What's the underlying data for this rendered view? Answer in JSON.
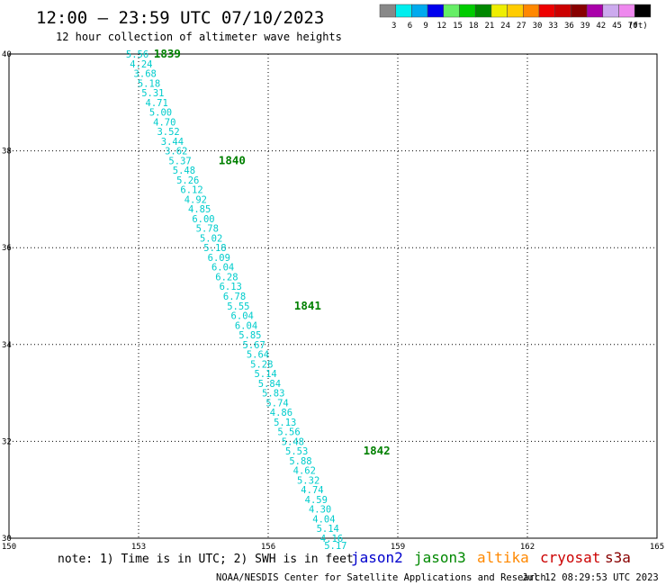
{
  "title": "12:00 – 23:59 UTC 07/10/2023",
  "subtitle": "12 hour collection of altimeter wave heights",
  "legend": {
    "unit": "(ft)",
    "bins": [
      {
        "label": "3",
        "color": "#888888"
      },
      {
        "label": "6",
        "color": "#00eeee"
      },
      {
        "label": "9",
        "color": "#00aaee"
      },
      {
        "label": "12",
        "color": "#0000ee"
      },
      {
        "label": "15",
        "color": "#66ee66"
      },
      {
        "label": "18",
        "color": "#00cc00"
      },
      {
        "label": "21",
        "color": "#008800"
      },
      {
        "label": "24",
        "color": "#eeee00"
      },
      {
        "label": "27",
        "color": "#ffcc00"
      },
      {
        "label": "30",
        "color": "#ff8800"
      },
      {
        "label": "33",
        "color": "#ee0000"
      },
      {
        "label": "36",
        "color": "#cc0000"
      },
      {
        "label": "39",
        "color": "#880000"
      },
      {
        "label": "42",
        "color": "#aa00aa"
      },
      {
        "label": "45",
        "color": "#ccaaee"
      },
      {
        "label": "70",
        "color": "#ee88ee"
      },
      {
        "label": "",
        "color": "#000000"
      }
    ]
  },
  "chart_data": {
    "type": "scatter",
    "xlim": [
      150,
      165
    ],
    "ylim": [
      30,
      40
    ],
    "xticks": [
      "150",
      "153",
      "156",
      "159",
      "162",
      "165"
    ],
    "yticks": [
      "30",
      "32",
      "34",
      "36",
      "38",
      "40"
    ],
    "grid": true,
    "point_color": "#00cccc",
    "label_color": "#008000",
    "points": [
      {
        "x": 152.97,
        "y": 40.0,
        "label": "5.56"
      },
      {
        "x": 153.06,
        "y": 39.8,
        "label": "4.24"
      },
      {
        "x": 153.15,
        "y": 39.6,
        "label": "3.68"
      },
      {
        "x": 153.24,
        "y": 39.4,
        "label": "5.18"
      },
      {
        "x": 153.33,
        "y": 39.2,
        "label": "5.31"
      },
      {
        "x": 153.42,
        "y": 39.0,
        "label": "4.71"
      },
      {
        "x": 153.51,
        "y": 38.8,
        "label": "5.00"
      },
      {
        "x": 153.6,
        "y": 38.6,
        "label": "4.70"
      },
      {
        "x": 153.69,
        "y": 38.4,
        "label": "3.52"
      },
      {
        "x": 153.78,
        "y": 38.2,
        "label": "3.44"
      },
      {
        "x": 153.87,
        "y": 38.0,
        "label": "3.62"
      },
      {
        "x": 153.96,
        "y": 37.8,
        "label": "5.37"
      },
      {
        "x": 154.05,
        "y": 37.6,
        "label": "5.48"
      },
      {
        "x": 154.14,
        "y": 37.4,
        "label": "5.26"
      },
      {
        "x": 154.23,
        "y": 37.2,
        "label": "6.12"
      },
      {
        "x": 154.32,
        "y": 37.0,
        "label": "4.92"
      },
      {
        "x": 154.41,
        "y": 36.8,
        "label": "4.85"
      },
      {
        "x": 154.5,
        "y": 36.6,
        "label": "6.00"
      },
      {
        "x": 154.59,
        "y": 36.4,
        "label": "5.78"
      },
      {
        "x": 154.68,
        "y": 36.2,
        "label": "5.02"
      },
      {
        "x": 154.77,
        "y": 36.0,
        "label": "5.18"
      },
      {
        "x": 154.86,
        "y": 35.8,
        "label": "6.09"
      },
      {
        "x": 154.95,
        "y": 35.6,
        "label": "6.04"
      },
      {
        "x": 155.04,
        "y": 35.4,
        "label": "6.28"
      },
      {
        "x": 155.13,
        "y": 35.2,
        "label": "6.13"
      },
      {
        "x": 155.22,
        "y": 35.0,
        "label": "6.78"
      },
      {
        "x": 155.31,
        "y": 34.8,
        "label": "5.55"
      },
      {
        "x": 155.4,
        "y": 34.6,
        "label": "6.04"
      },
      {
        "x": 155.49,
        "y": 34.4,
        "label": "6.04"
      },
      {
        "x": 155.58,
        "y": 34.2,
        "label": "5.85"
      },
      {
        "x": 155.67,
        "y": 34.0,
        "label": "5.67"
      },
      {
        "x": 155.76,
        "y": 33.8,
        "label": "5.64"
      },
      {
        "x": 155.85,
        "y": 33.6,
        "label": "5.28"
      },
      {
        "x": 155.94,
        "y": 33.4,
        "label": "5.14"
      },
      {
        "x": 156.03,
        "y": 33.2,
        "label": "5.84"
      },
      {
        "x": 156.12,
        "y": 33.0,
        "label": "5.83"
      },
      {
        "x": 156.21,
        "y": 32.8,
        "label": "5.74"
      },
      {
        "x": 156.3,
        "y": 32.6,
        "label": "4.86"
      },
      {
        "x": 156.39,
        "y": 32.4,
        "label": "5.13"
      },
      {
        "x": 156.48,
        "y": 32.2,
        "label": "5.56"
      },
      {
        "x": 156.57,
        "y": 32.0,
        "label": "5.48"
      },
      {
        "x": 156.66,
        "y": 31.8,
        "label": "5.53"
      },
      {
        "x": 156.75,
        "y": 31.6,
        "label": "5.88"
      },
      {
        "x": 156.84,
        "y": 31.4,
        "label": "4.62"
      },
      {
        "x": 156.93,
        "y": 31.2,
        "label": "5.32"
      },
      {
        "x": 157.02,
        "y": 31.0,
        "label": "4.74"
      },
      {
        "x": 157.11,
        "y": 30.8,
        "label": "4.59"
      },
      {
        "x": 157.2,
        "y": 30.6,
        "label": "4.30"
      },
      {
        "x": 157.29,
        "y": 30.4,
        "label": "4.04"
      },
      {
        "x": 157.38,
        "y": 30.2,
        "label": "5.14"
      },
      {
        "x": 157.47,
        "y": 30.0,
        "label": "4.16"
      },
      {
        "x": 157.56,
        "y": 29.85,
        "label": "5.17"
      }
    ],
    "pass_labels": [
      {
        "text": "1839",
        "x": 153.35,
        "y": 40.0
      },
      {
        "text": "1840",
        "x": 154.85,
        "y": 37.8
      },
      {
        "text": "1841",
        "x": 156.6,
        "y": 34.8
      },
      {
        "text": "1842",
        "x": 158.2,
        "y": 31.8
      }
    ]
  },
  "note": "note:  1) Time is in UTC;  2) SWH is in feet",
  "satellites": [
    {
      "name": "jason2",
      "color": "#0000cc"
    },
    {
      "name": "jason3",
      "color": "#008800"
    },
    {
      "name": "altika",
      "color": "#ff8800"
    },
    {
      "name": "cryosat",
      "color": "#cc0000"
    },
    {
      "name": "s3a",
      "color": "#880000"
    }
  ],
  "credit": "NOAA/NESDIS Center for Satellite Applications and Research",
  "generated": "Jul 12 08:29:53 UTC 2023"
}
